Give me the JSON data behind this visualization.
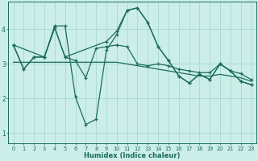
{
  "background_color": "#cceee8",
  "grid_color": "#aad8d2",
  "line_color": "#1a6b60",
  "xlabel": "Humidex (Indice chaleur)",
  "xlim": [
    -0.5,
    23.5
  ],
  "ylim": [
    0.7,
    4.8
  ],
  "yticks": [
    1,
    2,
    3,
    4
  ],
  "xticks": [
    0,
    1,
    2,
    3,
    4,
    5,
    6,
    7,
    8,
    9,
    10,
    11,
    12,
    13,
    14,
    15,
    16,
    17,
    18,
    19,
    20,
    21,
    22,
    23
  ],
  "series1_x": [
    0,
    1,
    2,
    3,
    4,
    5,
    6,
    7,
    8,
    9,
    10,
    11,
    12,
    13,
    14,
    15,
    16,
    17,
    18,
    19,
    20,
    21,
    22,
    23
  ],
  "series1_y": [
    3.55,
    2.85,
    3.2,
    3.2,
    4.1,
    4.1,
    2.05,
    1.25,
    1.4,
    3.4,
    3.85,
    4.55,
    4.62,
    4.2,
    3.5,
    3.1,
    2.65,
    2.45,
    2.7,
    2.55,
    3.0,
    2.8,
    2.5,
    2.4
  ],
  "series2_x": [
    0,
    1,
    2,
    3,
    4,
    5,
    6,
    7,
    8,
    9,
    10,
    11,
    12,
    13,
    14,
    15,
    16,
    17,
    18,
    19,
    20,
    21,
    22,
    23
  ],
  "series2_y": [
    3.55,
    2.85,
    3.2,
    3.2,
    4.05,
    3.2,
    3.1,
    2.6,
    3.45,
    3.5,
    3.55,
    3.5,
    3.0,
    2.95,
    3.0,
    2.95,
    2.85,
    2.8,
    2.75,
    2.75,
    3.0,
    2.8,
    2.72,
    2.55
  ],
  "series3_x": [
    0,
    3,
    4,
    5,
    9,
    10,
    11,
    12,
    13,
    14,
    15,
    16,
    17,
    18,
    19,
    20,
    21,
    22,
    23
  ],
  "series3_y": [
    3.55,
    3.2,
    4.05,
    3.2,
    3.65,
    3.95,
    4.55,
    4.62,
    4.2,
    3.5,
    3.1,
    2.65,
    2.45,
    2.7,
    2.55,
    3.0,
    2.8,
    2.5,
    2.4
  ],
  "series4_x": [
    0,
    1,
    2,
    3,
    4,
    5,
    6,
    7,
    8,
    9,
    10,
    11,
    12,
    13,
    14,
    15,
    16,
    17,
    18,
    19,
    20,
    21,
    22,
    23
  ],
  "series4_y": [
    3.05,
    3.05,
    3.05,
    3.05,
    3.05,
    3.05,
    3.05,
    3.05,
    3.05,
    3.05,
    3.05,
    3.0,
    2.95,
    2.9,
    2.85,
    2.8,
    2.75,
    2.7,
    2.65,
    2.65,
    2.7,
    2.65,
    2.6,
    2.5
  ]
}
